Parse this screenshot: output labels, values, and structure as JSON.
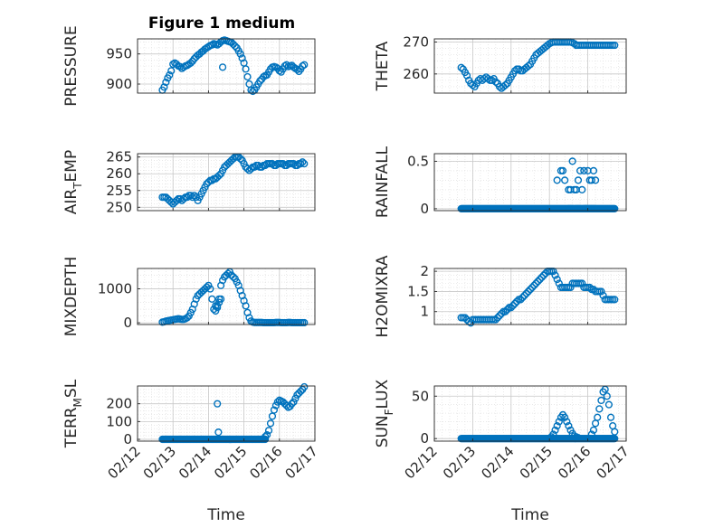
{
  "figure_title": "Figure 1 medium",
  "marker_color": "#0072BD",
  "axes_color": "#262626",
  "grid_color": "#dcdcdc",
  "chart_data": [
    {
      "type": "scatter",
      "id": "pressure",
      "title": "Figure 1 medium",
      "xlabel": "",
      "ylabel": "PRESSURE",
      "xlim": [
        0,
        5
      ],
      "ylim": [
        885,
        975
      ],
      "yticks": [
        900,
        950
      ],
      "xticks": [],
      "xticklabels": [],
      "grid": true,
      "minor_grid": true,
      "x": [
        0.7,
        0.75,
        0.8,
        0.85,
        0.9,
        0.95,
        1.0,
        1.05,
        1.1,
        1.15,
        1.2,
        1.25,
        1.3,
        1.35,
        1.4,
        1.45,
        1.5,
        1.55,
        1.6,
        1.65,
        1.7,
        1.75,
        1.8,
        1.85,
        1.9,
        1.95,
        2.0,
        2.05,
        2.1,
        2.15,
        2.2,
        2.25,
        2.3,
        2.35,
        2.4,
        2.45,
        2.5,
        2.55,
        2.6,
        2.65,
        2.7,
        2.75,
        2.8,
        2.85,
        2.9,
        2.95,
        3.0,
        3.05,
        3.1,
        3.15,
        3.2,
        3.25,
        3.3,
        3.35,
        3.4,
        3.45,
        3.5,
        3.55,
        3.6,
        3.65,
        3.7,
        3.75,
        3.8,
        3.85,
        3.9,
        3.95,
        4.0,
        4.05,
        4.1,
        4.15,
        4.2,
        4.25,
        4.3,
        4.35,
        4.4,
        4.45,
        4.5,
        4.55,
        4.6,
        4.65,
        4.7,
        2.4
      ],
      "y": [
        890,
        895,
        903,
        910,
        915,
        922,
        933,
        935,
        933,
        930,
        929,
        926,
        928,
        930,
        931,
        933,
        935,
        938,
        942,
        945,
        948,
        950,
        953,
        955,
        958,
        960,
        962,
        964,
        965,
        967,
        966,
        965,
        967,
        970,
        972,
        973,
        972,
        971,
        970,
        969,
        966,
        963,
        960,
        955,
        950,
        943,
        935,
        925,
        912,
        900,
        890,
        888,
        890,
        895,
        900,
        905,
        908,
        912,
        914,
        915,
        920,
        925,
        928,
        929,
        928,
        926,
        922,
        920,
        925,
        930,
        932,
        929,
        930,
        931,
        928,
        926,
        924,
        921,
        925,
        930,
        932,
        928
      ]
    },
    {
      "type": "scatter",
      "id": "theta",
      "xlabel": "",
      "ylabel": "THETA",
      "xlim": [
        0,
        5
      ],
      "ylim": [
        254,
        271
      ],
      "yticks": [
        260,
        270
      ],
      "xticks": [],
      "xticklabels": [],
      "grid": true,
      "minor_grid": true,
      "x": [
        0.7,
        0.75,
        0.8,
        0.85,
        0.9,
        0.95,
        1.0,
        1.05,
        1.1,
        1.15,
        1.2,
        1.25,
        1.3,
        1.35,
        1.4,
        1.45,
        1.5,
        1.55,
        1.6,
        1.65,
        1.7,
        1.75,
        1.8,
        1.85,
        1.9,
        1.95,
        2.0,
        2.05,
        2.1,
        2.15,
        2.2,
        2.25,
        2.3,
        2.35,
        2.4,
        2.45,
        2.5,
        2.55,
        2.6,
        2.65,
        2.7,
        2.75,
        2.8,
        2.85,
        2.9,
        2.95,
        3.0,
        3.05,
        3.1,
        3.15,
        3.2,
        3.25,
        3.3,
        3.35,
        3.4,
        3.45,
        3.5,
        3.55,
        3.6,
        3.65,
        3.7,
        3.75,
        3.8,
        3.85,
        3.9,
        3.95,
        4.0,
        4.05,
        4.1,
        4.15,
        4.2,
        4.25,
        4.3,
        4.35,
        4.4,
        4.45,
        4.5,
        4.55,
        4.6,
        4.65,
        4.7
      ],
      "y": [
        262,
        261.5,
        260.5,
        259.5,
        258,
        257,
        256.5,
        256,
        257,
        258,
        258.5,
        258,
        258.5,
        259,
        258.5,
        258,
        258,
        258.5,
        257.5,
        257,
        256,
        255.5,
        256,
        256.5,
        257,
        258,
        259,
        260,
        261,
        261.5,
        261.5,
        261,
        261,
        261.5,
        262,
        262.5,
        263,
        264,
        265,
        266,
        266.5,
        267,
        267.5,
        268,
        268.5,
        269,
        269.5,
        269.8,
        270,
        270,
        270,
        270,
        270,
        270,
        270,
        270,
        270,
        270,
        269.8,
        269.5,
        269,
        269,
        269,
        269,
        269,
        269,
        269,
        269,
        269,
        269,
        269,
        269,
        269,
        269,
        269,
        269,
        269,
        269,
        269,
        269,
        269
      ]
    },
    {
      "type": "scatter",
      "id": "airtemp",
      "xlabel": "",
      "ylabel": "AIR_TEMP",
      "ylabel_main": "AIR",
      "ylabel_sub": "T",
      "ylabel_rest": "EMP",
      "xlim": [
        0,
        5
      ],
      "ylim": [
        249,
        266
      ],
      "yticks": [
        250,
        255,
        260,
        265
      ],
      "xticks": [],
      "xticklabels": [],
      "grid": true,
      "minor_grid": true,
      "x": [
        0.7,
        0.75,
        0.8,
        0.85,
        0.9,
        0.95,
        1.0,
        1.05,
        1.1,
        1.15,
        1.2,
        1.25,
        1.3,
        1.35,
        1.4,
        1.45,
        1.5,
        1.55,
        1.6,
        1.65,
        1.7,
        1.75,
        1.8,
        1.85,
        1.9,
        1.95,
        2.0,
        2.05,
        2.1,
        2.15,
        2.2,
        2.25,
        2.3,
        2.35,
        2.4,
        2.45,
        2.5,
        2.55,
        2.6,
        2.65,
        2.7,
        2.75,
        2.8,
        2.85,
        2.9,
        2.95,
        3.0,
        3.05,
        3.1,
        3.15,
        3.2,
        3.25,
        3.3,
        3.35,
        3.4,
        3.45,
        3.5,
        3.55,
        3.6,
        3.65,
        3.7,
        3.75,
        3.8,
        3.85,
        3.9,
        3.95,
        4.0,
        4.05,
        4.1,
        4.15,
        4.2,
        4.25,
        4.3,
        4.35,
        4.4,
        4.45,
        4.5,
        4.55,
        4.6,
        4.65,
        4.7
      ],
      "y": [
        253,
        253,
        253,
        252.5,
        252,
        251.5,
        251,
        251.5,
        252,
        252.5,
        252.5,
        252,
        252.5,
        253,
        253,
        253.5,
        253.5,
        253,
        253.5,
        253,
        252,
        253,
        254,
        255,
        256,
        257,
        257.5,
        258,
        258,
        258.5,
        258.5,
        259,
        259.5,
        260,
        261,
        262,
        262.5,
        263,
        263.5,
        264,
        264.5,
        265,
        265,
        265,
        264.5,
        264,
        263,
        262,
        261.5,
        261,
        261.5,
        262,
        262,
        262.5,
        262.5,
        262,
        262,
        262.5,
        262.5,
        263,
        263,
        263,
        263,
        262.5,
        262.5,
        263,
        263,
        263,
        263,
        262.5,
        262.5,
        263,
        263,
        263,
        263,
        262.5,
        262.5,
        263,
        263,
        263.5,
        263
      ]
    },
    {
      "type": "scatter",
      "id": "rainfall",
      "xlabel": "",
      "ylabel": "RAINFALL",
      "xlim": [
        0,
        5
      ],
      "ylim": [
        -0.02,
        0.58
      ],
      "yticks": [
        0,
        0.5
      ],
      "xticks": [],
      "xticklabels": [],
      "grid": true,
      "minor_grid": true,
      "x": [
        3.2,
        3.4,
        3.6,
        3.65,
        3.7,
        3.8,
        3.9,
        4.0,
        4.05,
        4.1,
        4.15,
        4.2,
        3.3,
        3.35,
        3.5,
        3.55,
        3.75,
        3.85,
        3.95,
        4.0,
        4.1,
        4.2,
        3.55,
        3.7,
        3.8,
        3.95,
        4.05,
        4.15,
        3.5,
        3.6,
        3.75,
        3.9
      ],
      "y": [
        0.3,
        0.3,
        0.5,
        0.2,
        0.2,
        0.4,
        0.4,
        0.4,
        0.3,
        0.3,
        0.4,
        0.3,
        0.4,
        0.4,
        0.2,
        0.2,
        0.3,
        0.2,
        0.0,
        0.0,
        0.0,
        0.0,
        0.0,
        0.0,
        0.0,
        0.0,
        0.0,
        0.0,
        0.0,
        0.0,
        0.0,
        0.0
      ],
      "baseline_x_range": [
        0.7,
        4.7
      ],
      "baseline_y": 0
    },
    {
      "type": "scatter",
      "id": "mixdepth",
      "xlabel": "",
      "ylabel": "MIXDEPTH",
      "xlim": [
        0,
        5
      ],
      "ylim": [
        -50,
        1600
      ],
      "yticks": [
        0,
        1000
      ],
      "xticks": [],
      "xticklabels": [],
      "grid": true,
      "minor_grid": true,
      "x": [
        0.7,
        0.75,
        0.8,
        0.85,
        0.9,
        0.95,
        1.0,
        1.05,
        1.1,
        1.15,
        1.2,
        1.25,
        1.3,
        1.35,
        1.4,
        1.45,
        1.5,
        1.55,
        1.6,
        1.65,
        1.7,
        1.75,
        1.8,
        1.85,
        1.9,
        1.95,
        2.0,
        2.05,
        2.1,
        2.15,
        2.2,
        2.25,
        2.3,
        2.35,
        2.4,
        2.45,
        2.5,
        2.55,
        2.6,
        2.65,
        2.7,
        2.75,
        2.8,
        2.85,
        2.9,
        2.95,
        3.0,
        3.05,
        3.1,
        3.15,
        3.2,
        3.25,
        3.3,
        3.35,
        3.4,
        3.45,
        3.5,
        3.55,
        3.6,
        3.65,
        3.7,
        3.75,
        3.8,
        3.85,
        3.9,
        3.95,
        4.0,
        4.05,
        4.1,
        4.15,
        4.2,
        4.25,
        4.3,
        4.35,
        4.4,
        4.45,
        4.5,
        4.55,
        4.6,
        4.65,
        4.7,
        2.2,
        2.25,
        2.3,
        2.35
      ],
      "y": [
        20,
        30,
        50,
        60,
        70,
        80,
        90,
        100,
        110,
        120,
        110,
        100,
        100,
        120,
        150,
        200,
        300,
        400,
        550,
        700,
        800,
        850,
        900,
        950,
        1000,
        1050,
        1100,
        1000,
        700,
        400,
        350,
        500,
        700,
        1100,
        1250,
        1350,
        1400,
        1450,
        1500,
        1400,
        1350,
        1300,
        1200,
        1100,
        950,
        800,
        650,
        500,
        300,
        150,
        50,
        20,
        10,
        10,
        10,
        10,
        10,
        5,
        5,
        5,
        5,
        5,
        5,
        5,
        10,
        10,
        10,
        5,
        5,
        5,
        5,
        10,
        10,
        5,
        5,
        5,
        5,
        5,
        5,
        5,
        5,
        500,
        450,
        600,
        700
      ]
    },
    {
      "type": "scatter",
      "id": "h2omixra",
      "xlabel": "",
      "ylabel": "H2OMIXRA",
      "xlim": [
        0,
        5
      ],
      "ylim": [
        0.68,
        2.07
      ],
      "yticks": [
        1,
        1.5,
        2
      ],
      "xticks": [],
      "xticklabels": [],
      "grid": true,
      "minor_grid": true,
      "x": [
        0.7,
        0.75,
        0.8,
        0.85,
        0.9,
        0.95,
        1.0,
        1.05,
        1.1,
        1.15,
        1.2,
        1.25,
        1.3,
        1.35,
        1.4,
        1.45,
        1.5,
        1.55,
        1.6,
        1.65,
        1.7,
        1.75,
        1.8,
        1.85,
        1.9,
        1.95,
        2.0,
        2.05,
        2.1,
        2.15,
        2.2,
        2.25,
        2.3,
        2.35,
        2.4,
        2.45,
        2.5,
        2.55,
        2.6,
        2.65,
        2.7,
        2.75,
        2.8,
        2.85,
        2.9,
        2.95,
        3.0,
        3.05,
        3.1,
        3.15,
        3.2,
        3.25,
        3.3,
        3.35,
        3.4,
        3.45,
        3.5,
        3.55,
        3.6,
        3.65,
        3.7,
        3.75,
        3.8,
        3.85,
        3.9,
        3.95,
        4.0,
        4.05,
        4.1,
        4.15,
        4.2,
        4.25,
        4.3,
        4.35,
        4.4,
        4.45,
        4.5,
        4.55,
        4.6,
        4.65,
        4.7
      ],
      "y": [
        0.85,
        0.85,
        0.85,
        0.8,
        0.75,
        0.72,
        0.8,
        0.8,
        0.8,
        0.8,
        0.8,
        0.8,
        0.8,
        0.8,
        0.8,
        0.8,
        0.8,
        0.8,
        0.8,
        0.85,
        0.9,
        0.95,
        1.0,
        1.0,
        1.05,
        1.1,
        1.1,
        1.15,
        1.2,
        1.25,
        1.3,
        1.3,
        1.35,
        1.4,
        1.45,
        1.5,
        1.55,
        1.6,
        1.65,
        1.7,
        1.75,
        1.8,
        1.85,
        1.9,
        1.95,
        2.0,
        2.0,
        2.0,
        2.0,
        1.9,
        1.8,
        1.7,
        1.6,
        1.6,
        1.6,
        1.6,
        1.6,
        1.6,
        1.7,
        1.7,
        1.7,
        1.7,
        1.7,
        1.7,
        1.6,
        1.6,
        1.6,
        1.6,
        1.55,
        1.55,
        1.5,
        1.5,
        1.5,
        1.5,
        1.4,
        1.3,
        1.3,
        1.3,
        1.3,
        1.3,
        1.3
      ]
    },
    {
      "type": "scatter",
      "id": "terrmsl",
      "xlabel": "Time",
      "ylabel": "TERR_MSL",
      "ylabel_main": "TERR",
      "ylabel_sub": "M",
      "ylabel_rest": "SL",
      "xlim": [
        0,
        5
      ],
      "ylim": [
        -10,
        300
      ],
      "yticks": [
        0,
        100,
        200
      ],
      "xticks": [
        0,
        1,
        2,
        3,
        4,
        5
      ],
      "xticklabels": [
        "02/12",
        "02/13",
        "02/14",
        "02/15",
        "02/16",
        "02/17"
      ],
      "grid": true,
      "minor_grid": true,
      "x": [
        2.25,
        2.28,
        3.6,
        3.65,
        3.7,
        3.75,
        3.8,
        3.85,
        3.9,
        3.95,
        4.0,
        4.05,
        4.1,
        4.15,
        4.2,
        4.25,
        4.3,
        4.35,
        4.4,
        4.45,
        4.5,
        4.55,
        4.6,
        4.65,
        4.7
      ],
      "y": [
        200,
        40,
        15,
        25,
        50,
        90,
        130,
        165,
        190,
        210,
        220,
        215,
        210,
        200,
        190,
        180,
        185,
        200,
        210,
        230,
        250,
        260,
        270,
        280,
        295
      ],
      "baseline_x_range": [
        0.7,
        3.6
      ],
      "baseline_y": 0
    },
    {
      "type": "scatter",
      "id": "sunflux",
      "xlabel": "Time",
      "ylabel": "SUN_FLUX",
      "ylabel_main": "SUN",
      "ylabel_sub": "F",
      "ylabel_rest": "LUX",
      "xlim": [
        0,
        5
      ],
      "ylim": [
        -3,
        62
      ],
      "yticks": [
        0,
        50
      ],
      "xticks": [
        0,
        1,
        2,
        3,
        4,
        5
      ],
      "xticklabels": [
        "02/12",
        "02/13",
        "02/14",
        "02/15",
        "02/16",
        "02/17"
      ],
      "grid": true,
      "minor_grid": true,
      "x": [
        3.05,
        3.1,
        3.15,
        3.2,
        3.25,
        3.3,
        3.35,
        3.4,
        3.45,
        3.5,
        3.55,
        3.6,
        3.65,
        3.7,
        3.75,
        4.1,
        4.15,
        4.2,
        4.25,
        4.3,
        4.35,
        4.4,
        4.45,
        4.5,
        4.55,
        4.6,
        4.65,
        4.7
      ],
      "y": [
        2,
        5,
        10,
        15,
        20,
        25,
        28,
        25,
        20,
        15,
        10,
        6,
        3,
        2,
        1,
        5,
        10,
        18,
        25,
        35,
        45,
        55,
        58,
        50,
        40,
        25,
        15,
        8
      ],
      "baseline_x_range": [
        0.7,
        4.7
      ],
      "baseline_y": 0
    }
  ]
}
